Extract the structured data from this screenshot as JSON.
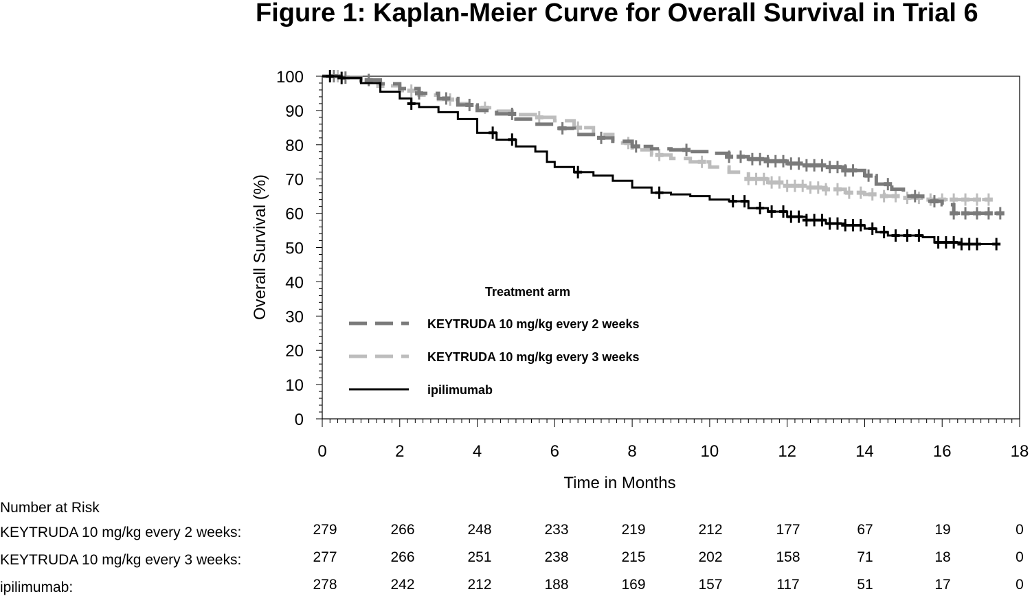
{
  "chart_data": {
    "type": "line",
    "title": "Figure 1: Kaplan-Meier Curve for Overall Survival in Trial 6",
    "xlabel": "Time in Months",
    "ylabel": "Overall Survival (%)",
    "xlim": [
      0,
      18
    ],
    "ylim": [
      0,
      100
    ],
    "xticks": [
      0,
      2,
      4,
      6,
      8,
      10,
      12,
      14,
      16,
      18
    ],
    "yticks": [
      0,
      10,
      20,
      30,
      40,
      50,
      60,
      70,
      80,
      90,
      100
    ],
    "legend_title": "Treatment arm",
    "legend_position": "lower-left",
    "series": [
      {
        "name": "KEYTRUDA 10 mg/kg every 2 weeks",
        "color": "#7a7a7a",
        "style": "dashed",
        "points": [
          [
            0,
            100
          ],
          [
            0.5,
            99.6
          ],
          [
            1,
            98.9
          ],
          [
            1.5,
            97.8
          ],
          [
            2,
            96.4
          ],
          [
            2.5,
            95
          ],
          [
            3,
            93.5
          ],
          [
            3.5,
            91.6
          ],
          [
            4,
            90
          ],
          [
            4.5,
            89
          ],
          [
            5,
            87.5
          ],
          [
            5.5,
            86
          ],
          [
            6,
            84.8
          ],
          [
            6.5,
            83
          ],
          [
            7,
            82
          ],
          [
            7.5,
            81
          ],
          [
            8,
            79.5
          ],
          [
            8.5,
            78.8
          ],
          [
            9,
            78.5
          ],
          [
            9.5,
            78
          ],
          [
            10,
            77.5
          ],
          [
            10.5,
            76.5
          ],
          [
            11,
            75.8
          ],
          [
            11.5,
            75.2
          ],
          [
            12,
            74.5
          ],
          [
            12.5,
            74
          ],
          [
            13,
            73.5
          ],
          [
            13.5,
            72.5
          ],
          [
            14,
            71
          ],
          [
            14.3,
            68.5
          ],
          [
            14.7,
            67
          ],
          [
            15,
            65
          ],
          [
            15.5,
            63.5
          ],
          [
            16,
            62.5
          ],
          [
            16.3,
            60
          ],
          [
            17,
            60
          ],
          [
            17.5,
            60
          ]
        ],
        "censor_months": [
          0.3,
          0.6,
          1.2,
          2.5,
          3.2,
          3.8,
          4.9,
          6.2,
          7.2,
          8.1,
          9.4,
          10.5,
          10.8,
          11.1,
          11.3,
          11.5,
          11.7,
          11.9,
          12.1,
          12.3,
          12.5,
          12.7,
          12.9,
          13.1,
          13.3,
          13.5,
          13.7,
          14.1,
          14.6,
          15.3,
          15.8,
          16.3,
          16.6,
          16.9,
          17.2,
          17.5
        ]
      },
      {
        "name": "KEYTRUDA 10 mg/kg every 3 weeks",
        "color": "#bdbdbd",
        "style": "dashed",
        "points": [
          [
            0,
            100
          ],
          [
            0.5,
            99.5
          ],
          [
            1,
            98.5
          ],
          [
            1.5,
            97.2
          ],
          [
            2,
            95.8
          ],
          [
            2.5,
            94.5
          ],
          [
            3,
            93.2
          ],
          [
            3.5,
            92
          ],
          [
            4,
            90.8
          ],
          [
            4.5,
            89.8
          ],
          [
            5,
            88.8
          ],
          [
            5.5,
            88
          ],
          [
            6,
            87
          ],
          [
            6.5,
            85
          ],
          [
            7,
            83
          ],
          [
            7.5,
            80.5
          ],
          [
            8,
            78.5
          ],
          [
            8.5,
            77
          ],
          [
            9,
            76
          ],
          [
            9.5,
            75
          ],
          [
            10,
            73.5
          ],
          [
            10.5,
            72
          ],
          [
            11,
            70
          ],
          [
            11.5,
            69
          ],
          [
            12,
            68
          ],
          [
            12.5,
            67.5
          ],
          [
            13,
            67
          ],
          [
            13.5,
            66
          ],
          [
            14,
            65.5
          ],
          [
            14.5,
            65
          ],
          [
            15,
            64.5
          ],
          [
            15.5,
            64
          ],
          [
            16,
            64
          ],
          [
            17,
            64
          ],
          [
            17.3,
            64
          ]
        ],
        "censor_months": [
          0.4,
          1.5,
          2.3,
          3.3,
          4.2,
          5.6,
          6.6,
          7.9,
          8.7,
          9.8,
          11,
          11.2,
          11.4,
          11.6,
          11.8,
          12,
          12.2,
          12.4,
          12.6,
          12.8,
          13,
          13.3,
          13.6,
          13.9,
          14.2,
          14.5,
          14.8,
          15.1,
          15.4,
          15.7,
          16,
          16.3,
          16.6,
          16.9,
          17.2
        ]
      },
      {
        "name": "ipilimumab",
        "color": "#000000",
        "style": "solid",
        "points": [
          [
            0,
            100
          ],
          [
            0.5,
            99.5
          ],
          [
            1,
            98
          ],
          [
            1.5,
            95.5
          ],
          [
            2,
            93.5
          ],
          [
            2.3,
            92
          ],
          [
            2.5,
            91
          ],
          [
            3,
            89.5
          ],
          [
            3.5,
            87.5
          ],
          [
            4,
            83.5
          ],
          [
            4.5,
            81.5
          ],
          [
            5,
            79.5
          ],
          [
            5.5,
            78
          ],
          [
            5.8,
            75
          ],
          [
            6,
            73.5
          ],
          [
            6.5,
            72
          ],
          [
            7,
            71
          ],
          [
            7.5,
            69.5
          ],
          [
            8,
            67.5
          ],
          [
            8.5,
            66
          ],
          [
            9,
            65.5
          ],
          [
            9.5,
            65
          ],
          [
            10,
            64
          ],
          [
            10.5,
            63.5
          ],
          [
            11,
            61.5
          ],
          [
            11.5,
            60.5
          ],
          [
            12,
            59
          ],
          [
            12.5,
            58
          ],
          [
            13,
            57
          ],
          [
            13.5,
            56.5
          ],
          [
            14,
            55.5
          ],
          [
            14.3,
            54.5
          ],
          [
            14.6,
            53.5
          ],
          [
            15,
            53.5
          ],
          [
            15.5,
            53
          ],
          [
            15.8,
            51.5
          ],
          [
            16.5,
            51
          ],
          [
            17.4,
            51
          ]
        ],
        "censor_months": [
          0.2,
          0.5,
          2.3,
          4.4,
          4.9,
          6.6,
          8.7,
          10.6,
          10.9,
          11.3,
          11.6,
          11.9,
          12.1,
          12.3,
          12.5,
          12.7,
          12.9,
          13.1,
          13.3,
          13.5,
          13.7,
          13.9,
          14.2,
          14.5,
          14.8,
          15.1,
          15.4,
          15.9,
          16.1,
          16.3,
          16.5,
          16.7,
          16.9,
          17.4
        ]
      }
    ]
  },
  "risk_table": {
    "header": "Number at Risk",
    "rows": [
      {
        "label": "KEYTRUDA 10 mg/kg every 2 weeks:",
        "values": [
          "279",
          "266",
          "248",
          "233",
          "219",
          "212",
          "177",
          "67",
          "19",
          "0"
        ]
      },
      {
        "label": "KEYTRUDA 10 mg/kg every 3 weeks:",
        "values": [
          "277",
          "266",
          "251",
          "238",
          "215",
          "202",
          "158",
          "71",
          "18",
          "0"
        ]
      },
      {
        "label": "ipilimumab:",
        "values": [
          "278",
          "242",
          "212",
          "188",
          "169",
          "157",
          "117",
          "51",
          "17",
          "0"
        ]
      }
    ]
  }
}
